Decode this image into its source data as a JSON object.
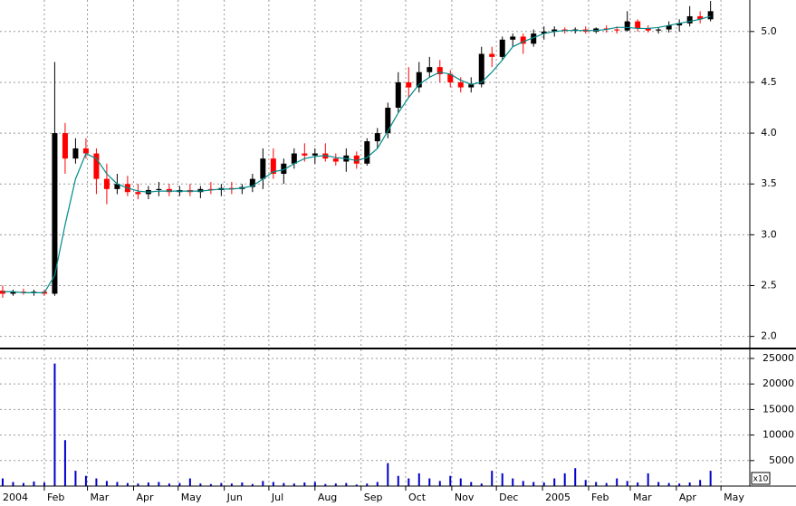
{
  "chart_data": [
    {
      "type": "candlestick",
      "up_color": "#000000",
      "down_color": "#ff0000",
      "ma_color": "#008b8b",
      "grid": true,
      "x": [
        3,
        10,
        17,
        24,
        31,
        38,
        45,
        52,
        59,
        66,
        73,
        80,
        87,
        94,
        101,
        108,
        115,
        122,
        129,
        136,
        143,
        150,
        157,
        164,
        171,
        178,
        185,
        192,
        199,
        206,
        213,
        220,
        227,
        234,
        241,
        248,
        255,
        262,
        269,
        276,
        283,
        290,
        297,
        304,
        311,
        318,
        325,
        332,
        339,
        346,
        353,
        360,
        367,
        374,
        381,
        388,
        395,
        402,
        409,
        416,
        423,
        430,
        437,
        444,
        451,
        458,
        465,
        472,
        479
      ],
      "candles": [
        [
          2.45,
          2.5,
          2.38,
          2.42
        ],
        [
          2.42,
          2.46,
          2.4,
          2.44
        ],
        [
          2.44,
          2.47,
          2.41,
          2.43
        ],
        [
          2.43,
          2.46,
          2.4,
          2.44
        ],
        [
          2.44,
          2.46,
          2.4,
          2.42
        ],
        [
          2.42,
          4.7,
          2.4,
          4.0
        ],
        [
          4.0,
          4.1,
          3.6,
          3.75
        ],
        [
          3.75,
          3.95,
          3.7,
          3.85
        ],
        [
          3.85,
          3.95,
          3.75,
          3.8
        ],
        [
          3.8,
          3.85,
          3.4,
          3.55
        ],
        [
          3.55,
          3.7,
          3.3,
          3.45
        ],
        [
          3.45,
          3.6,
          3.4,
          3.5
        ],
        [
          3.5,
          3.58,
          3.38,
          3.42
        ],
        [
          3.42,
          3.5,
          3.35,
          3.4
        ],
        [
          3.4,
          3.48,
          3.35,
          3.44
        ],
        [
          3.44,
          3.52,
          3.38,
          3.45
        ],
        [
          3.45,
          3.5,
          3.38,
          3.42
        ],
        [
          3.42,
          3.48,
          3.38,
          3.44
        ],
        [
          3.44,
          3.5,
          3.38,
          3.42
        ],
        [
          3.42,
          3.48,
          3.36,
          3.45
        ],
        [
          3.45,
          3.52,
          3.4,
          3.44
        ],
        [
          3.44,
          3.5,
          3.38,
          3.46
        ],
        [
          3.46,
          3.52,
          3.4,
          3.45
        ],
        [
          3.45,
          3.5,
          3.4,
          3.47
        ],
        [
          3.47,
          3.6,
          3.42,
          3.55
        ],
        [
          3.55,
          3.85,
          3.45,
          3.75
        ],
        [
          3.75,
          3.85,
          3.55,
          3.6
        ],
        [
          3.6,
          3.75,
          3.5,
          3.7
        ],
        [
          3.7,
          3.85,
          3.65,
          3.8
        ],
        [
          3.8,
          3.9,
          3.72,
          3.78
        ],
        [
          3.78,
          3.85,
          3.7,
          3.8
        ],
        [
          3.8,
          3.9,
          3.72,
          3.75
        ],
        [
          3.75,
          3.8,
          3.68,
          3.72
        ],
        [
          3.72,
          3.85,
          3.62,
          3.78
        ],
        [
          3.78,
          3.82,
          3.65,
          3.7
        ],
        [
          3.7,
          3.95,
          3.68,
          3.92
        ],
        [
          3.92,
          4.05,
          3.85,
          4.0
        ],
        [
          4.0,
          4.3,
          3.95,
          4.25
        ],
        [
          4.25,
          4.6,
          4.2,
          4.5
        ],
        [
          4.5,
          4.65,
          4.35,
          4.45
        ],
        [
          4.45,
          4.7,
          4.4,
          4.6
        ],
        [
          4.6,
          4.75,
          4.55,
          4.65
        ],
        [
          4.65,
          4.72,
          4.5,
          4.58
        ],
        [
          4.58,
          4.62,
          4.45,
          4.5
        ],
        [
          4.5,
          4.55,
          4.4,
          4.45
        ],
        [
          4.45,
          4.55,
          4.4,
          4.48
        ],
        [
          4.48,
          4.85,
          4.45,
          4.78
        ],
        [
          4.78,
          4.85,
          4.65,
          4.75
        ],
        [
          4.75,
          4.95,
          4.72,
          4.92
        ],
        [
          4.92,
          4.98,
          4.85,
          4.95
        ],
        [
          4.95,
          4.98,
          4.78,
          4.88
        ],
        [
          4.88,
          5.02,
          4.85,
          4.98
        ],
        [
          4.98,
          5.05,
          4.92,
          5.0
        ],
        [
          5.0,
          5.05,
          4.95,
          5.02
        ],
        [
          5.02,
          5.04,
          4.98,
          5.01
        ],
        [
          5.01,
          5.04,
          4.98,
          5.02
        ],
        [
          5.02,
          5.05,
          4.98,
          5.0
        ],
        [
          5.0,
          5.04,
          4.98,
          5.03
        ],
        [
          5.03,
          5.06,
          4.99,
          5.02
        ],
        [
          5.02,
          5.05,
          4.98,
          5.01
        ],
        [
          5.01,
          5.2,
          5.0,
          5.1
        ],
        [
          5.1,
          5.12,
          5.0,
          5.03
        ],
        [
          5.03,
          5.06,
          4.99,
          5.01
        ],
        [
          5.01,
          5.04,
          4.98,
          5.02
        ],
        [
          5.02,
          5.1,
          4.99,
          5.06
        ],
        [
          5.06,
          5.12,
          5.0,
          5.08
        ],
        [
          5.08,
          5.25,
          5.05,
          5.15
        ],
        [
          5.15,
          5.2,
          5.08,
          5.12
        ],
        [
          5.12,
          5.3,
          5.1,
          5.2
        ]
      ],
      "ma": [
        2.44,
        2.44,
        2.43,
        2.43,
        2.43,
        2.6,
        3.1,
        3.55,
        3.8,
        3.75,
        3.6,
        3.5,
        3.46,
        3.43,
        3.42,
        3.43,
        3.43,
        3.43,
        3.43,
        3.43,
        3.44,
        3.45,
        3.45,
        3.46,
        3.48,
        3.55,
        3.62,
        3.64,
        3.7,
        3.75,
        3.77,
        3.78,
        3.76,
        3.75,
        3.73,
        3.76,
        3.85,
        4.02,
        4.2,
        4.35,
        4.48,
        4.55,
        4.6,
        4.58,
        4.52,
        4.48,
        4.5,
        4.6,
        4.72,
        4.85,
        4.9,
        4.94,
        4.98,
        5.0,
        5.01,
        5.01,
        5.01,
        5.01,
        5.02,
        5.04,
        5.04,
        5.03,
        5.03,
        5.04,
        5.06,
        5.08,
        5.1,
        5.12,
        5.15
      ],
      "ylim": [
        1.89,
        5.31
      ],
      "yticks": [
        {
          "value": 2,
          "label": "2.0"
        },
        2.5,
        {
          "value": 3,
          "label": "3.0"
        },
        3.5,
        {
          "value": 4,
          "label": "4.0"
        },
        4.5,
        {
          "value": 5,
          "label": "5.0"
        }
      ]
    },
    {
      "type": "bar",
      "color": "#0000cc",
      "grid": true,
      "multiplier_label": "x10",
      "values": [
        1500,
        800,
        600,
        900,
        700,
        24000,
        9000,
        3000,
        2000,
        1500,
        1000,
        800,
        600,
        500,
        700,
        800,
        500,
        600,
        1500,
        500,
        400,
        600,
        500,
        700,
        400,
        1000,
        800,
        600,
        500,
        700,
        800,
        400,
        500,
        600,
        300,
        500,
        800,
        4500,
        2000,
        1500,
        2500,
        1500,
        1000,
        2000,
        1500,
        800,
        500,
        3000,
        2500,
        1500,
        1000,
        800,
        700,
        1500,
        2500,
        3500,
        1200,
        800,
        600,
        1500,
        1000,
        700,
        2500,
        800,
        600,
        500,
        700,
        1200,
        3000
      ],
      "ylim": [
        0,
        26770
      ],
      "yticks": [
        5000,
        10000,
        15000,
        20000,
        25000
      ],
      "xlim": [
        1.2,
        505.4
      ],
      "xticks": [
        {
          "value": 0,
          "label": "2004"
        },
        {
          "value": 31,
          "label": "Feb"
        },
        {
          "value": 60,
          "label": "Mar"
        },
        {
          "value": 91,
          "label": "Apr"
        },
        {
          "value": 121,
          "label": "May"
        },
        {
          "value": 152,
          "label": "Jun"
        },
        {
          "value": 182,
          "label": "Jul"
        },
        {
          "value": 213,
          "label": "Aug"
        },
        {
          "value": 244,
          "label": "Sep"
        },
        {
          "value": 274,
          "label": "Oct"
        },
        {
          "value": 305,
          "label": "Nov"
        },
        {
          "value": 335,
          "label": "Dec"
        },
        {
          "value": 366,
          "label": "2005"
        },
        {
          "value": 397,
          "label": "Feb"
        },
        {
          "value": 425,
          "label": "Mar"
        },
        {
          "value": 456,
          "label": "Apr"
        },
        {
          "value": 486,
          "label": "May"
        }
      ]
    }
  ]
}
